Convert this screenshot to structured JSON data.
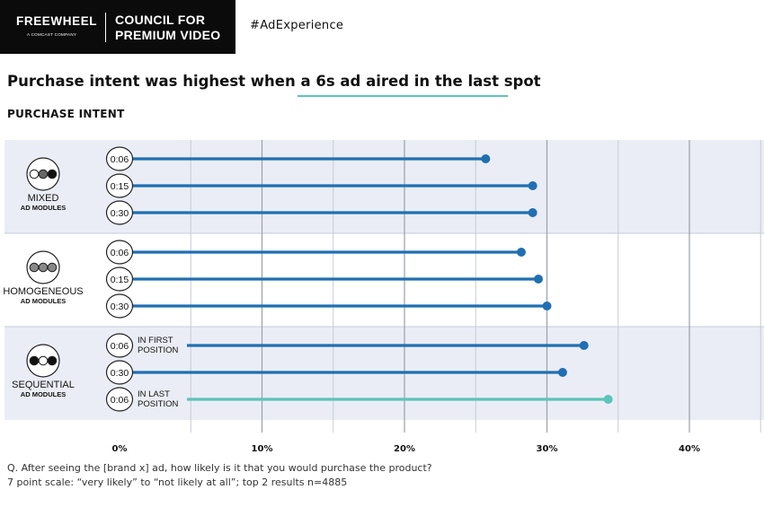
{
  "header": {
    "logo_text": "FREEWHEEL",
    "logo_subtext": "A COMCAST COMPANY",
    "council_line1": "COUNCIL FOR",
    "council_line2": "PREMIUM VIDEO",
    "hashtag": "#AdExperience"
  },
  "title": "Purchase intent was highest when a 6s ad aired in the last spot",
  "subtitle": "PURCHASE INTENT",
  "footnote": {
    "line1": "Q. After seeing the [brand x] ad, how likely is it that you would purchase the product?",
    "line2": "7 point scale: “very likely” to “not likely at all”; top 2 results n=4885"
  },
  "colors": {
    "bar": "#1f6fb2",
    "highlight": "#5cc4b8",
    "band": "#eaedf5"
  },
  "chart_data": {
    "type": "lollipop",
    "xlim": [
      0,
      45
    ],
    "x_ticks": [
      0,
      10,
      20,
      30,
      40
    ],
    "x_tick_labels": [
      "0%",
      "10%",
      "20%",
      "30%",
      "40%"
    ],
    "groups": [
      {
        "label": "MIXED",
        "sublabel": "AD MODULES",
        "icon": "mixed-dots-icon",
        "bars": [
          {
            "duration": "0:06",
            "value": 25.7
          },
          {
            "duration": "0:15",
            "value": 29.0
          },
          {
            "duration": "0:30",
            "value": 29.0
          }
        ]
      },
      {
        "label": "HOMOGENEOUS",
        "sublabel": "AD MODULES",
        "icon": "homogeneous-dots-icon",
        "bars": [
          {
            "duration": "0:06",
            "value": 28.2
          },
          {
            "duration": "0:15",
            "value": 29.4
          },
          {
            "duration": "0:30",
            "value": 30.0
          }
        ]
      },
      {
        "label": "SEQUENTIAL",
        "sublabel": "AD MODULES",
        "icon": "sequential-dots-icon",
        "bars": [
          {
            "duration": "0:06",
            "value": 32.6,
            "note_line1": "IN FIRST",
            "note_line2": "POSITION"
          },
          {
            "duration": "0:30",
            "value": 31.1
          },
          {
            "duration": "0:06",
            "value": 34.3,
            "note_line1": "IN LAST",
            "note_line2": "POSITION",
            "highlight": true
          }
        ]
      }
    ]
  }
}
